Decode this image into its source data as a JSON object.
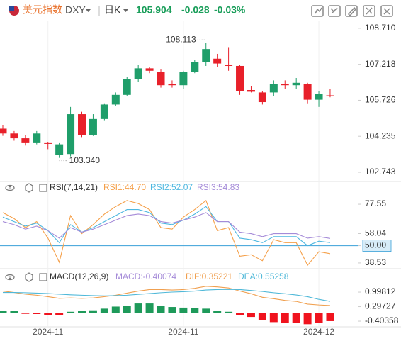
{
  "header": {
    "name": "美元指数",
    "symbol": "DXY",
    "period": "日K",
    "price": "105.904",
    "change": "-0.028",
    "change_pct": "-0.03%"
  },
  "chart_data": [
    {
      "type": "candlestick",
      "ylim": [
        102.39,
        109.0
      ],
      "yticks": [
        {
          "value": 108.71,
          "label": "108.710"
        },
        107.218,
        105.726,
        104.235,
        102.743
      ],
      "up_color": "#1f9e6a",
      "down_color": "#e8202a",
      "candles": [
        {
          "open": 104.55,
          "high": 104.7,
          "low": 104.25,
          "close": 104.35
        },
        {
          "open": 104.35,
          "high": 104.45,
          "low": 104.05,
          "close": 104.15
        },
        {
          "open": 104.15,
          "high": 104.3,
          "low": 103.85,
          "close": 103.95
        },
        {
          "open": 103.95,
          "high": 104.45,
          "low": 103.9,
          "close": 104.35
        },
        {
          "open": 103.95,
          "high": 104.0,
          "low": 103.7,
          "close": 103.92
        },
        {
          "open": 103.45,
          "high": 103.95,
          "low": 103.34,
          "close": 103.9
        },
        {
          "open": 103.5,
          "high": 105.45,
          "low": 103.4,
          "close": 105.15
        },
        {
          "open": 105.15,
          "high": 105.25,
          "low": 104.2,
          "close": 104.3
        },
        {
          "open": 104.3,
          "high": 105.15,
          "low": 104.25,
          "close": 104.95
        },
        {
          "open": 104.95,
          "high": 105.6,
          "low": 104.9,
          "close": 105.55
        },
        {
          "open": 105.55,
          "high": 106.05,
          "low": 105.5,
          "close": 105.95
        },
        {
          "open": 105.95,
          "high": 106.7,
          "low": 105.9,
          "close": 106.6
        },
        {
          "open": 106.6,
          "high": 107.2,
          "low": 106.5,
          "close": 107.05
        },
        {
          "open": 107.05,
          "high": 107.1,
          "low": 106.85,
          "close": 106.95
        },
        {
          "open": 106.9,
          "high": 107.0,
          "low": 106.25,
          "close": 106.35
        },
        {
          "open": 106.4,
          "high": 106.55,
          "low": 106.25,
          "close": 106.35
        },
        {
          "open": 106.35,
          "high": 106.95,
          "low": 106.2,
          "close": 106.9
        },
        {
          "open": 106.9,
          "high": 107.4,
          "low": 106.85,
          "close": 107.3
        },
        {
          "open": 107.3,
          "high": 108.113,
          "low": 107.15,
          "close": 107.85
        },
        {
          "open": 107.45,
          "high": 107.65,
          "low": 107.1,
          "close": 107.25
        },
        {
          "open": 107.2,
          "high": 107.9,
          "low": 106.95,
          "close": 107.15
        },
        {
          "open": 107.15,
          "high": 107.2,
          "low": 105.95,
          "close": 106.1
        },
        {
          "open": 106.15,
          "high": 106.3,
          "low": 106.05,
          "close": 106.08
        },
        {
          "open": 106.05,
          "high": 106.1,
          "low": 105.55,
          "close": 105.65
        },
        {
          "open": 106.05,
          "high": 106.55,
          "low": 105.9,
          "close": 106.4
        },
        {
          "open": 106.4,
          "high": 106.55,
          "low": 106.2,
          "close": 106.35
        },
        {
          "open": 106.35,
          "high": 106.65,
          "low": 106.2,
          "close": 106.45
        },
        {
          "open": 106.4,
          "high": 106.45,
          "low": 105.6,
          "close": 105.75
        },
        {
          "open": 105.75,
          "high": 106.1,
          "low": 105.45,
          "close": 106.0
        },
        {
          "open": 105.93,
          "high": 106.2,
          "low": 105.85,
          "close": 105.904
        }
      ],
      "annotations": [
        {
          "value": 108.113,
          "label": "108.113"
        },
        {
          "value": 103.34,
          "label": "103.340"
        }
      ]
    },
    {
      "type": "line",
      "title": "RSI(7,14,21)",
      "ylim": [
        35.2,
        83.7
      ],
      "yticks": [
        77.55,
        58.04,
        {
          "value": 50,
          "label": "50.00"
        },
        38.53
      ],
      "reference_line": {
        "value": 50,
        "color": "#3aa0d8"
      },
      "series": [
        {
          "name": "RSI1:44.70",
          "color": "#f5a04a",
          "values": [
            72,
            68,
            62,
            66,
            55,
            39,
            70,
            58,
            64,
            71,
            76,
            80,
            78,
            74,
            62,
            61,
            69,
            74,
            80,
            60,
            62,
            43,
            44,
            40,
            54,
            52,
            52,
            37,
            46,
            44.7
          ]
        },
        {
          "name": "RSI2:52.07",
          "color": "#4fb8e0",
          "values": [
            69,
            66,
            63,
            65,
            60,
            52,
            64,
            59,
            62,
            66,
            70,
            74,
            74,
            72,
            65,
            64,
            67,
            71,
            76,
            66,
            66,
            55,
            54,
            52,
            56,
            56,
            56,
            50,
            53,
            52.07
          ]
        },
        {
          "name": "RSI3:54.83",
          "color": "#a58bd8",
          "values": [
            66,
            64,
            61,
            63,
            60,
            55,
            62,
            59,
            61,
            64,
            67,
            70,
            71,
            70,
            66,
            65,
            67,
            69,
            72,
            66,
            66,
            59,
            58,
            56,
            58,
            58,
            58,
            55,
            56,
            54.83
          ]
        }
      ]
    },
    {
      "type": "combo",
      "title": "MACD(12,26,9)",
      "ylim": [
        -0.71,
        1.41
      ],
      "yticks": [
        0.99812,
        0.29727,
        -0.40358
      ],
      "categories": [
        null,
        null,
        null,
        null,
        "2024-11",
        null,
        null,
        null,
        null,
        null,
        null,
        null,
        null,
        null,
        null,
        null,
        "2024-11",
        null,
        null,
        null,
        null,
        null,
        null,
        null,
        null,
        null,
        null,
        null,
        "2024-12",
        null
      ],
      "bars": {
        "name": "MACD:-0.40074",
        "color": "#a58bd8",
        "up_color": "#1e9a5a",
        "down_color": "#f0131e",
        "values": [
          0.1,
          0.08,
          -0.05,
          -0.06,
          -0.1,
          -0.12,
          0.05,
          0.1,
          0.12,
          0.2,
          0.3,
          0.35,
          0.45,
          0.45,
          0.35,
          0.28,
          0.25,
          0.22,
          0.2,
          0.1,
          0.05,
          -0.1,
          -0.2,
          -0.35,
          -0.45,
          -0.5,
          -0.5,
          -0.55,
          -0.5,
          -0.40074
        ]
      },
      "series": [
        {
          "name": "DIF:0.35221",
          "color": "#f0a050",
          "values": [
            1.05,
            0.98,
            0.9,
            0.85,
            0.78,
            0.7,
            0.72,
            0.7,
            0.72,
            0.78,
            0.85,
            0.95,
            1.05,
            1.12,
            1.12,
            1.1,
            1.12,
            1.18,
            1.28,
            1.25,
            1.2,
            1.05,
            0.92,
            0.75,
            0.68,
            0.6,
            0.55,
            0.42,
            0.38,
            0.35221
          ]
        },
        {
          "name": "DEA:0.55258",
          "color": "#4fb8d8",
          "values": [
            0.98,
            0.98,
            0.97,
            0.95,
            0.93,
            0.9,
            0.87,
            0.85,
            0.83,
            0.82,
            0.83,
            0.85,
            0.89,
            0.93,
            0.97,
            1.0,
            1.02,
            1.05,
            1.1,
            1.12,
            1.13,
            1.12,
            1.08,
            1.03,
            0.97,
            0.92,
            0.86,
            0.78,
            0.65,
            0.55258
          ]
        }
      ]
    }
  ]
}
